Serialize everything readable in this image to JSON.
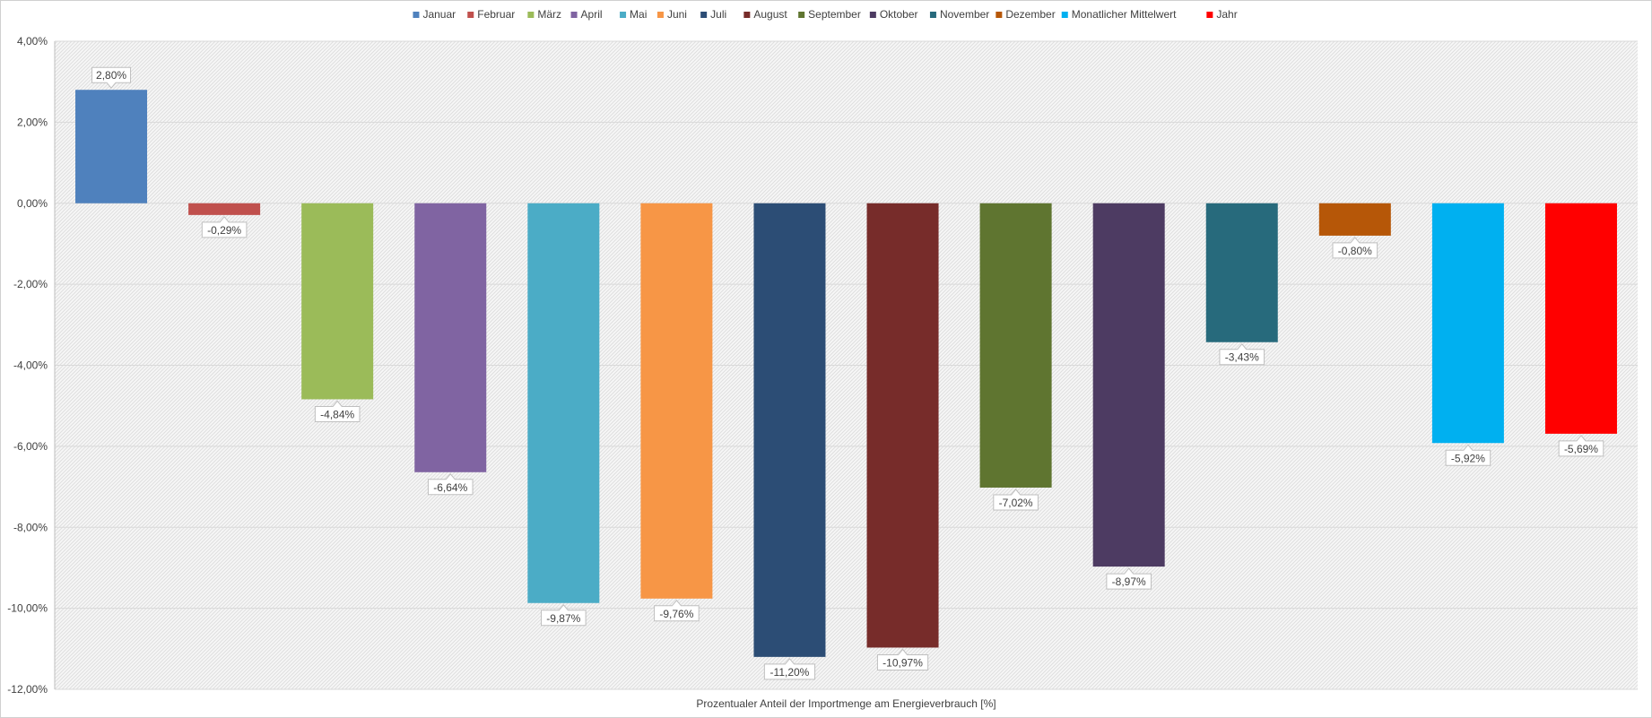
{
  "chart_data": {
    "type": "bar",
    "title": "",
    "xlabel": "Prozentualer Anteil der Importmenge am Energieverbrauch [%]",
    "ylabel": "",
    "ylim": [
      -12,
      4
    ],
    "yticks": [
      4,
      2,
      0,
      -2,
      -4,
      -6,
      -8,
      -10,
      -12
    ],
    "ytick_labels": [
      "4,00%",
      "2,00%",
      "0,00%",
      "-2,00%",
      "-4,00%",
      "-6,00%",
      "-8,00%",
      "-10,00%",
      "-12,00%"
    ],
    "grid": true,
    "legend_position": "top",
    "series": [
      {
        "name": "Januar",
        "value": 2.8,
        "label": "2,80%",
        "color": "#4F81BD"
      },
      {
        "name": "Februar",
        "value": -0.29,
        "label": "-0,29%",
        "color": "#C0504D"
      },
      {
        "name": "März",
        "value": -4.84,
        "label": "-4,84%",
        "color": "#9BBB59"
      },
      {
        "name": "April",
        "value": -6.64,
        "label": "-6,64%",
        "color": "#8064A2"
      },
      {
        "name": "Mai",
        "value": -9.87,
        "label": "-9,87%",
        "color": "#4BACC6"
      },
      {
        "name": "Juni",
        "value": -9.76,
        "label": "-9,76%",
        "color": "#F79646"
      },
      {
        "name": "Juli",
        "value": -11.2,
        "label": "-11,20%",
        "color": "#2C4D75"
      },
      {
        "name": "August",
        "value": -10.97,
        "label": "-10,97%",
        "color": "#772C2A"
      },
      {
        "name": "September",
        "value": -7.02,
        "label": "-7,02%",
        "color": "#5F7530"
      },
      {
        "name": "Oktober",
        "value": -8.97,
        "label": "-8,97%",
        "color": "#4D3B62"
      },
      {
        "name": "November",
        "value": -3.43,
        "label": "-3,43%",
        "color": "#276A7C"
      },
      {
        "name": "Dezember",
        "value": -0.8,
        "label": "-0,80%",
        "color": "#B65708"
      },
      {
        "name": "Monatlicher Mittelwert",
        "value": -5.92,
        "label": "-5,92%",
        "color": "#00B0F0"
      },
      {
        "name": "Jahr",
        "value": -5.69,
        "label": "-5,69%",
        "color": "#FF0000"
      }
    ]
  }
}
